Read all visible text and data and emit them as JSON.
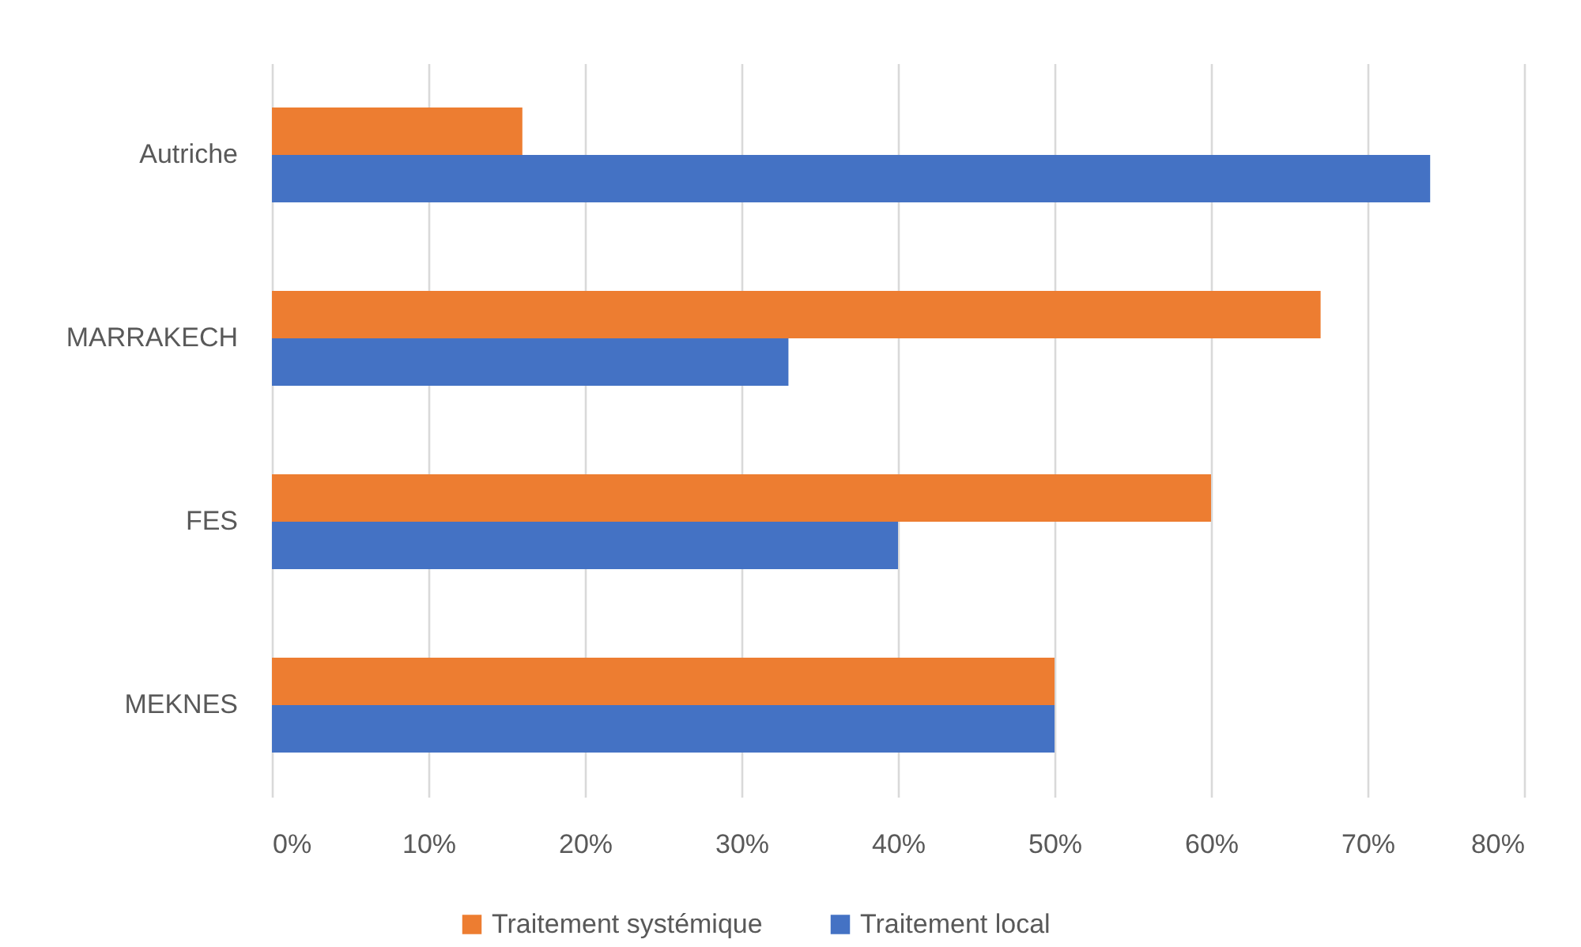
{
  "chart_data": {
    "type": "bar",
    "orientation": "horizontal",
    "categories": [
      "Autriche",
      "MARRAKECH",
      "FES",
      "MEKNES"
    ],
    "series": [
      {
        "name": "Traitement systémique",
        "color": "#ed7d31",
        "values": [
          16,
          67,
          60,
          50
        ]
      },
      {
        "name": "Traitement local",
        "color": "#4472c4",
        "values": [
          74,
          33,
          40,
          50
        ]
      }
    ],
    "xlim": [
      0,
      80
    ],
    "xticks": [
      {
        "value": 0,
        "label": "0%"
      },
      {
        "value": 10,
        "label": "10%"
      },
      {
        "value": 20,
        "label": "20%"
      },
      {
        "value": 30,
        "label": "30%"
      },
      {
        "value": 40,
        "label": "40%"
      },
      {
        "value": 50,
        "label": "50%"
      },
      {
        "value": 60,
        "label": "60%"
      },
      {
        "value": 70,
        "label": "70%"
      },
      {
        "value": 80,
        "label": "80%"
      }
    ],
    "grid": "x",
    "legend": "bottom"
  }
}
